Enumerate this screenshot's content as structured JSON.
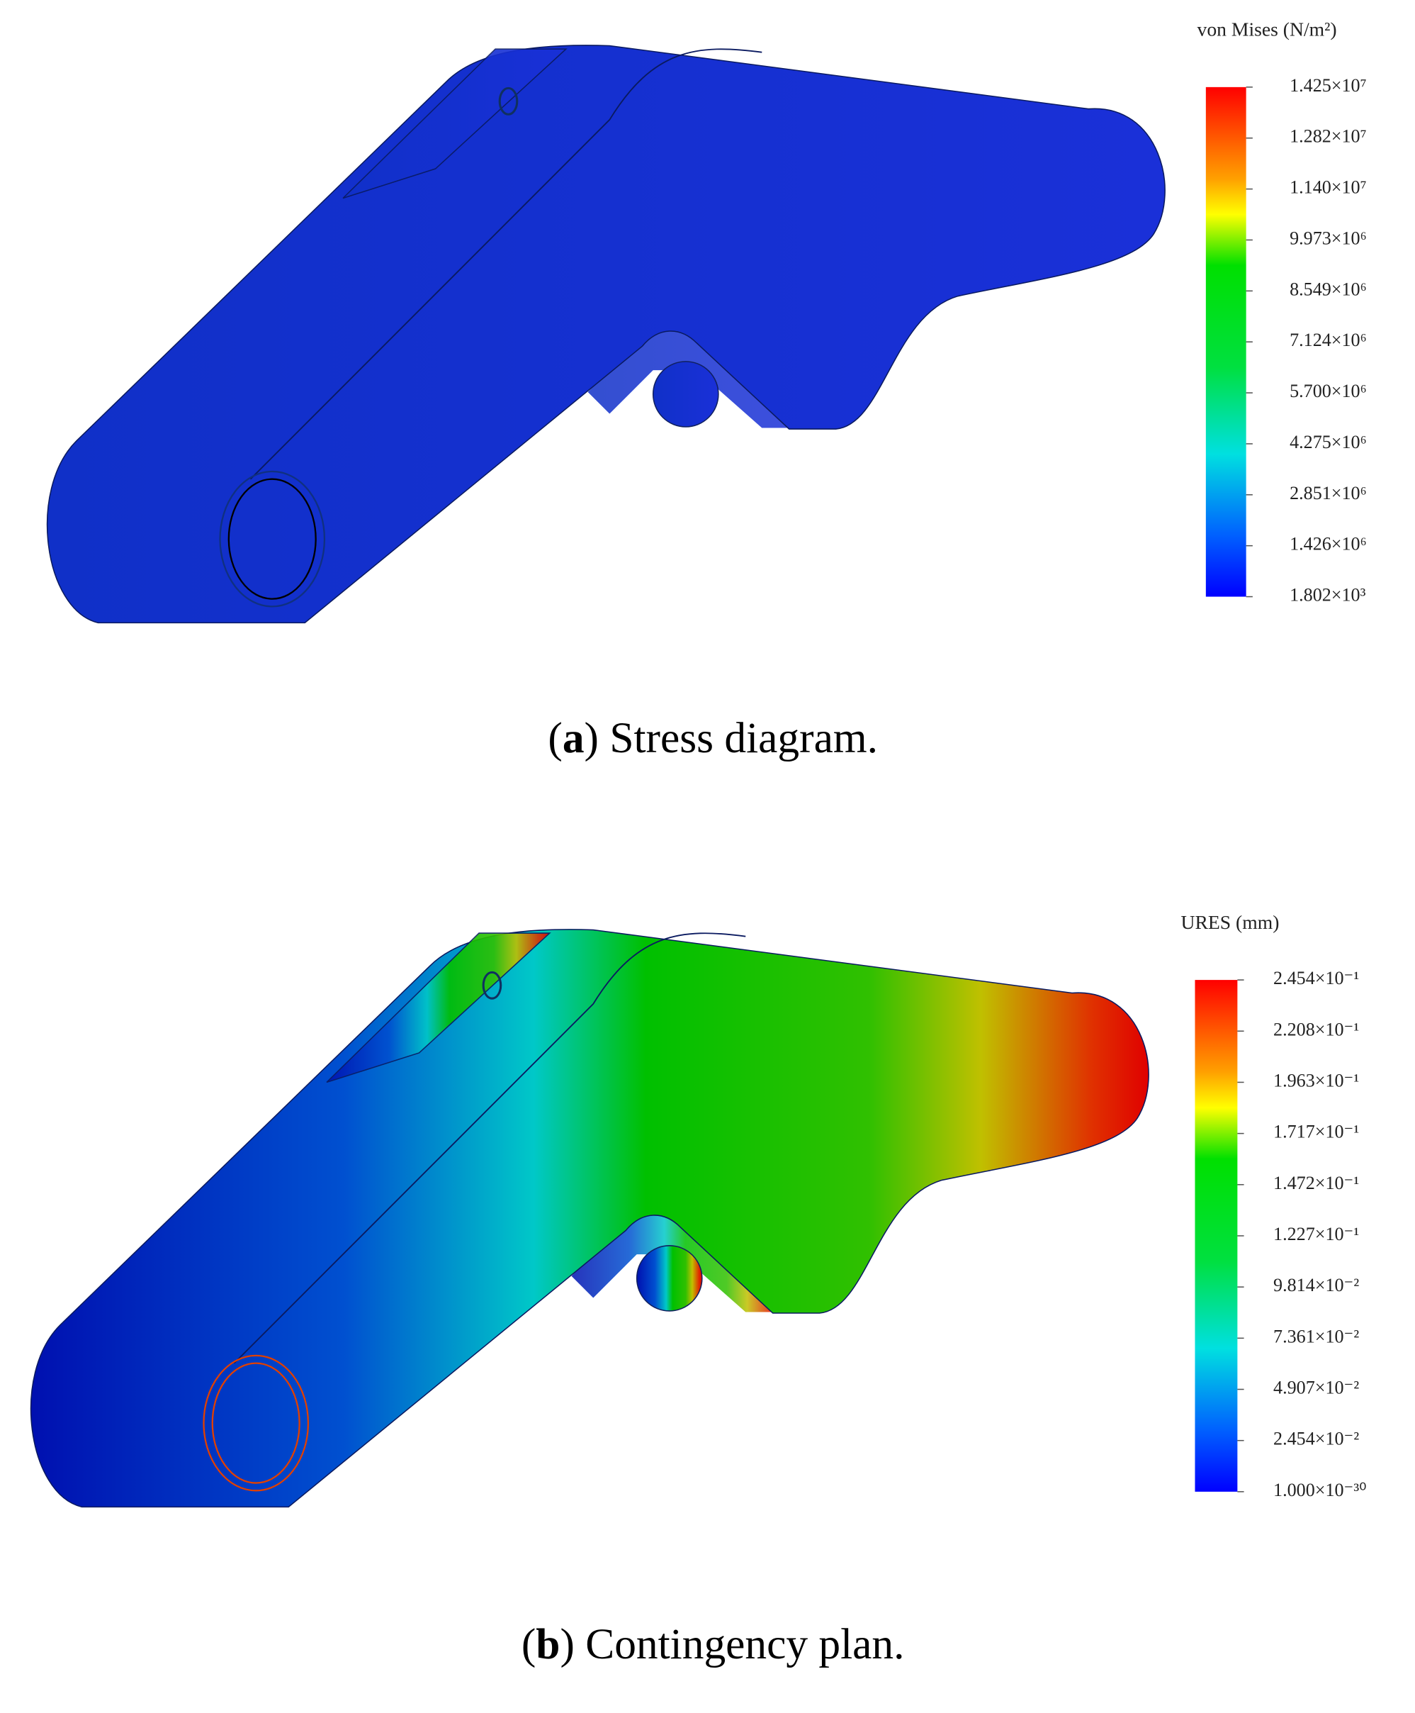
{
  "panels": [
    {
      "legend_title": "von Mises (N/m²)",
      "scale_labels": [
        "1.425×10⁷",
        "1.282×10⁷",
        "1.140×10⁷",
        "9.973×10⁶",
        "8.549×10⁶",
        "7.124×10⁶",
        "5.700×10⁶",
        "4.275×10⁶",
        "2.851×10⁶",
        "1.426×10⁶",
        "1.802×10³"
      ],
      "caption": {
        "prefix": "(",
        "label": "a",
        "text": ") Stress diagram."
      }
    },
    {
      "legend_title": "URES (mm)",
      "scale_labels": [
        "2.454×10⁻¹",
        "2.208×10⁻¹",
        "1.963×10⁻¹",
        "1.717×10⁻¹",
        "1.472×10⁻¹",
        "1.227×10⁻¹",
        "9.814×10⁻²",
        "7.361×10⁻²",
        "4.907×10⁻²",
        "2.454×10⁻²",
        "1.000×10⁻³⁰"
      ],
      "caption": {
        "prefix": "(",
        "label": "b",
        "text": ") Contingency plan."
      }
    }
  ]
}
